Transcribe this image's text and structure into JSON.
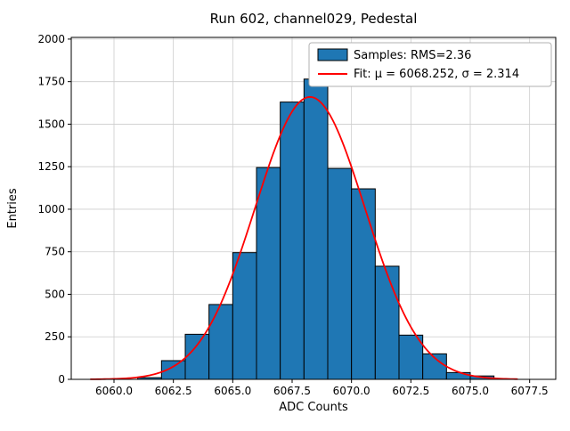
{
  "chart_data": {
    "type": "bar",
    "subtype": "histogram-with-gaussian-fit",
    "title": "Run 602, channel029, Pedestal",
    "xlabel": "ADC Counts",
    "ylabel": "Entries",
    "xlim": [
      6058.2,
      6078.6
    ],
    "ylim": [
      0,
      2010
    ],
    "xticks": [
      6060.0,
      6062.5,
      6065.0,
      6067.5,
      6070.0,
      6072.5,
      6075.0,
      6077.5
    ],
    "yticks": [
      0,
      250,
      500,
      750,
      1000,
      1250,
      1500,
      1750,
      2000
    ],
    "grid": true,
    "legend_position": "upper right",
    "hist": {
      "bin_start": 6061,
      "bin_width": 1,
      "counts": [
        10,
        110,
        265,
        440,
        745,
        1245,
        1630,
        1765,
        1240,
        1120,
        665,
        260,
        150,
        40,
        20
      ],
      "color": "#1f77b4",
      "edge_color": "#000000",
      "legend_label": "Samples: RMS=2.36"
    },
    "fit": {
      "mu": 6068.252,
      "sigma": 2.314,
      "amplitude": 1660,
      "x_range": [
        6059,
        6077
      ],
      "color": "#ff0000",
      "legend_label": "Fit: μ = 6068.252, σ = 2.314"
    }
  }
}
